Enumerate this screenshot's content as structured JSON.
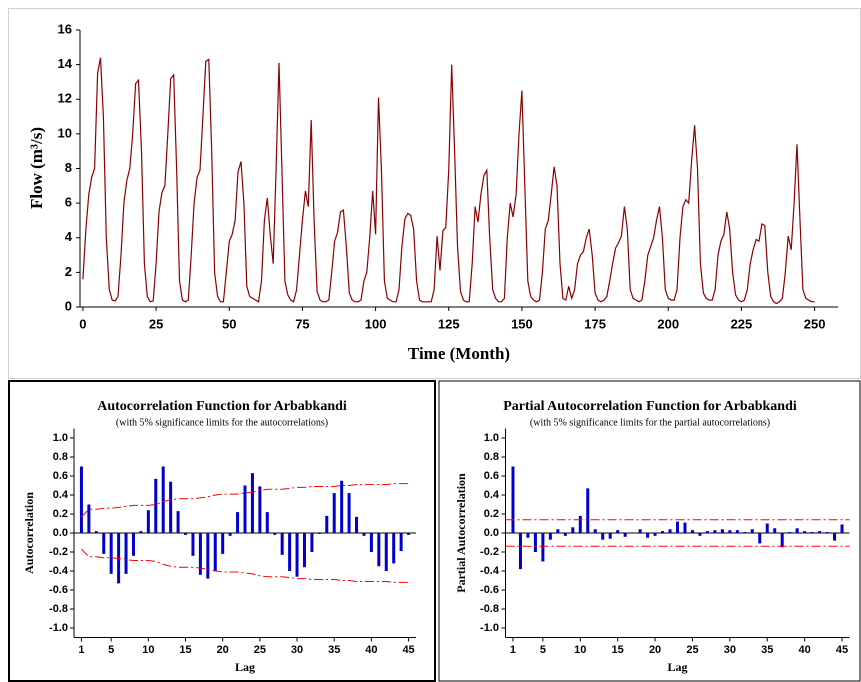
{
  "chart_data": [
    {
      "type": "line",
      "ylabel": "Flow (m³/s)",
      "xlabel": "Time (Month)",
      "color": "#8b0000",
      "xlim": [
        -1,
        258
      ],
      "ylim": [
        0,
        16
      ],
      "xticks": [
        0,
        25,
        50,
        75,
        100,
        125,
        150,
        175,
        200,
        225,
        250
      ],
      "yticks": [
        0,
        2,
        4,
        6,
        8,
        10,
        12,
        14,
        16
      ],
      "x": [
        0,
        1,
        2,
        3,
        4,
        5,
        6,
        7,
        8,
        9,
        10,
        11,
        12,
        13,
        14,
        15,
        16,
        17,
        18,
        19,
        20,
        21,
        22,
        23,
        24,
        25,
        26,
        27,
        28,
        29,
        30,
        31,
        32,
        33,
        34,
        35,
        36,
        37,
        38,
        39,
        40,
        41,
        42,
        43,
        44,
        45,
        46,
        47,
        48,
        49,
        50,
        51,
        52,
        53,
        54,
        55,
        56,
        57,
        58,
        59,
        60,
        61,
        62,
        63,
        64,
        65,
        66,
        67,
        68,
        69,
        70,
        71,
        72,
        73,
        74,
        75,
        76,
        77,
        78,
        79,
        80,
        81,
        82,
        83,
        84,
        85,
        86,
        87,
        88,
        89,
        90,
        91,
        92,
        93,
        94,
        95,
        96,
        97,
        98,
        99,
        100,
        101,
        102,
        103,
        104,
        105,
        106,
        107,
        108,
        109,
        110,
        111,
        112,
        113,
        114,
        115,
        116,
        117,
        118,
        119,
        120,
        121,
        122,
        123,
        124,
        125,
        126,
        127,
        128,
        129,
        130,
        131,
        132,
        133,
        134,
        135,
        136,
        137,
        138,
        139,
        140,
        141,
        142,
        143,
        144,
        145,
        146,
        147,
        148,
        149,
        150,
        151,
        152,
        153,
        154,
        155,
        156,
        157,
        158,
        159,
        160,
        161,
        162,
        163,
        164,
        165,
        166,
        167,
        168,
        169,
        170,
        171,
        172,
        173,
        174,
        175,
        176,
        177,
        178,
        179,
        180,
        181,
        182,
        183,
        184,
        185,
        186,
        187,
        188,
        189,
        190,
        191,
        192,
        193,
        194,
        195,
        196,
        197,
        198,
        199,
        200,
        201,
        202,
        203,
        204,
        205,
        206,
        207,
        208,
        209,
        210,
        211,
        212,
        213,
        214,
        215,
        216,
        217,
        218,
        219,
        220,
        221,
        222,
        223,
        224,
        225,
        226,
        227,
        228,
        229,
        230,
        231,
        232,
        233,
        234,
        235,
        236,
        237,
        238,
        239,
        240,
        241,
        242,
        243,
        244,
        245,
        246,
        247,
        248,
        249,
        250
      ],
      "values": [
        1.6,
        4.5,
        6.5,
        7.5,
        8.0,
        13.5,
        14.4,
        11,
        4,
        1.0,
        0.4,
        0.35,
        0.6,
        3.0,
        6.0,
        7.3,
        8.0,
        10,
        12.9,
        13.1,
        9,
        2.5,
        0.6,
        0.3,
        0.35,
        2.5,
        5.5,
        6.6,
        7.0,
        10,
        13.2,
        13.4,
        8,
        1.5,
        0.4,
        0.3,
        0.4,
        3.0,
        6.0,
        7.5,
        7.9,
        11,
        14.2,
        14.3,
        9,
        2,
        0.6,
        0.3,
        0.3,
        2.0,
        3.8,
        4.2,
        5.0,
        7.8,
        8.4,
        6,
        1.2,
        0.6,
        0.5,
        0.4,
        0.3,
        1.5,
        5.0,
        6.3,
        4.2,
        2.5,
        8,
        14.1,
        8,
        1.5,
        0.7,
        0.4,
        0.3,
        1.0,
        3.0,
        5.0,
        6.7,
        5.8,
        10.8,
        5,
        0.9,
        0.4,
        0.3,
        0.3,
        0.4,
        2.0,
        3.8,
        4.3,
        5.5,
        5.6,
        3.5,
        0.8,
        0.4,
        0.3,
        0.3,
        0.4,
        1.5,
        2.0,
        4.0,
        6.7,
        4.2,
        12.1,
        8,
        1.5,
        0.5,
        0.4,
        0.3,
        0.3,
        1.0,
        3.5,
        5.1,
        5.4,
        5.3,
        4.5,
        1.5,
        0.4,
        0.3,
        0.3,
        0.3,
        0.3,
        1.0,
        4.1,
        2.1,
        4.4,
        4.6,
        8,
        14.0,
        9,
        3.5,
        0.9,
        0.4,
        0.3,
        0.3,
        2.5,
        5.8,
        4.9,
        6.5,
        7.6,
        7.9,
        4,
        1.0,
        0.5,
        0.3,
        0.3,
        0.5,
        4.0,
        6.0,
        5.2,
        6.5,
        10,
        12.5,
        7,
        1.5,
        0.6,
        0.4,
        0.3,
        0.4,
        2.0,
        4.5,
        5.0,
        6.5,
        8.1,
        7.0,
        2.5,
        0.5,
        0.4,
        1.2,
        0.5,
        1.0,
        2.5,
        3.0,
        3.2,
        4.0,
        4.5,
        3.0,
        0.8,
        0.4,
        0.3,
        0.4,
        0.6,
        1.5,
        2.5,
        3.4,
        3.7,
        4.1,
        5.8,
        4.5,
        1.0,
        0.5,
        0.4,
        0.3,
        0.4,
        1.5,
        3.0,
        3.5,
        4.0,
        5.0,
        5.8,
        4.0,
        1.0,
        0.5,
        0.4,
        0.4,
        1.0,
        4.0,
        5.8,
        6.2,
        6.0,
        8.5,
        10.5,
        8,
        2.5,
        0.8,
        0.5,
        0.4,
        0.4,
        1.0,
        3.0,
        3.8,
        4.2,
        5.5,
        4.5,
        2.0,
        0.7,
        0.4,
        0.3,
        0.4,
        1.0,
        2.5,
        3.3,
        3.9,
        3.8,
        4.8,
        4.7,
        2.0,
        0.6,
        0.3,
        0.2,
        0.3,
        0.5,
        2.0,
        4.1,
        3.3,
        6,
        9.4,
        5,
        1.0,
        0.5,
        0.4,
        0.3,
        0.3
      ]
    },
    {
      "type": "bar",
      "title": "Autocorrelation Function for Arbabkandi",
      "subtitle": "(with 5% significance limits for the autocorrelations)",
      "xlabel": "Lag",
      "ylabel": "Autocorrelation",
      "color": "#0000cc",
      "limit_color": "#ff0000",
      "xlim": [
        0,
        46
      ],
      "ylim": [
        -1.1,
        1.1
      ],
      "xticks": [
        1,
        5,
        10,
        15,
        20,
        25,
        30,
        35,
        40,
        45
      ],
      "yticks": [
        {
          "value": 1,
          "label": "1.0"
        },
        0.8,
        0.6,
        0.4,
        0.2,
        {
          "value": 0,
          "label": "0.0"
        },
        -0.2,
        -0.4,
        -0.6,
        -0.8,
        {
          "value": -1,
          "label": "-1.0"
        }
      ],
      "x": [
        1,
        2,
        3,
        4,
        5,
        6,
        7,
        8,
        9,
        10,
        11,
        12,
        13,
        14,
        15,
        16,
        17,
        18,
        19,
        20,
        21,
        22,
        23,
        24,
        25,
        26,
        27,
        28,
        29,
        30,
        31,
        32,
        33,
        34,
        35,
        36,
        37,
        38,
        39,
        40,
        41,
        42,
        43,
        44,
        45
      ],
      "values": [
        0.7,
        0.3,
        0.02,
        -0.22,
        -0.43,
        -0.53,
        -0.43,
        -0.24,
        0.02,
        0.24,
        0.57,
        0.7,
        0.54,
        0.23,
        -0.02,
        -0.24,
        -0.44,
        -0.48,
        -0.4,
        -0.22,
        -0.03,
        0.22,
        0.5,
        0.63,
        0.49,
        0.22,
        -0.02,
        -0.23,
        -0.4,
        -0.46,
        -0.36,
        -0.2,
        -0.01,
        0.18,
        0.42,
        0.55,
        0.42,
        0.17,
        -0.03,
        -0.2,
        -0.35,
        -0.4,
        -0.32,
        -0.19,
        -0.02
      ],
      "upper_limit": [
        0.17,
        0.25,
        0.25,
        0.26,
        0.26,
        0.27,
        0.28,
        0.29,
        0.29,
        0.29,
        0.3,
        0.33,
        0.35,
        0.36,
        0.36,
        0.36,
        0.37,
        0.38,
        0.4,
        0.41,
        0.41,
        0.41,
        0.42,
        0.43,
        0.45,
        0.46,
        0.46,
        0.46,
        0.47,
        0.48,
        0.48,
        0.49,
        0.49,
        0.49,
        0.49,
        0.5,
        0.5,
        0.51,
        0.51,
        0.51,
        0.51,
        0.51,
        0.52,
        0.52,
        0.52
      ],
      "lower_limit": [
        -0.17,
        -0.25,
        -0.25,
        -0.26,
        -0.26,
        -0.27,
        -0.28,
        -0.29,
        -0.29,
        -0.29,
        -0.3,
        -0.33,
        -0.35,
        -0.36,
        -0.36,
        -0.36,
        -0.37,
        -0.38,
        -0.4,
        -0.41,
        -0.41,
        -0.41,
        -0.42,
        -0.43,
        -0.45,
        -0.46,
        -0.46,
        -0.46,
        -0.47,
        -0.48,
        -0.48,
        -0.49,
        -0.49,
        -0.49,
        -0.49,
        -0.5,
        -0.5,
        -0.51,
        -0.51,
        -0.51,
        -0.51,
        -0.51,
        -0.52,
        -0.52,
        -0.52
      ]
    },
    {
      "type": "bar",
      "title": "Partial Autocorrelation Function for Arbabkandi",
      "subtitle": "(with 5% significance limits for the partial autocorrelations)",
      "xlabel": "Lag",
      "ylabel": "Partial Autocorrelation",
      "color": "#0000cc",
      "limit_color": "#ff0000",
      "xlim": [
        0,
        46
      ],
      "ylim": [
        -1.1,
        1.1
      ],
      "xticks": [
        1,
        5,
        10,
        15,
        20,
        25,
        30,
        35,
        40,
        45
      ],
      "yticks": [
        {
          "value": 1,
          "label": "1.0"
        },
        0.8,
        0.6,
        0.4,
        0.2,
        {
          "value": 0,
          "label": "0.0"
        },
        -0.2,
        -0.4,
        -0.6,
        -0.8,
        {
          "value": -1,
          "label": "-1.0"
        }
      ],
      "x": [
        1,
        2,
        3,
        4,
        5,
        6,
        7,
        8,
        9,
        10,
        11,
        12,
        13,
        14,
        15,
        16,
        17,
        18,
        19,
        20,
        21,
        22,
        23,
        24,
        25,
        26,
        27,
        28,
        29,
        30,
        31,
        32,
        33,
        34,
        35,
        36,
        37,
        38,
        39,
        40,
        41,
        42,
        43,
        44,
        45
      ],
      "values": [
        0.7,
        -0.38,
        -0.05,
        -0.2,
        -0.3,
        -0.07,
        0.04,
        -0.03,
        0.06,
        0.18,
        0.47,
        0.04,
        -0.07,
        -0.06,
        0.03,
        -0.04,
        0.0,
        0.04,
        -0.05,
        -0.03,
        0.02,
        0.04,
        0.12,
        0.11,
        0.03,
        -0.03,
        0.02,
        0.03,
        0.04,
        0.03,
        0.03,
        0.01,
        0.04,
        -0.11,
        0.1,
        0.05,
        -0.15,
        0.01,
        0.05,
        0.02,
        0.01,
        0.02,
        0.01,
        -0.08,
        0.09
      ],
      "upper_limit": 0.14,
      "lower_limit": -0.14
    }
  ]
}
